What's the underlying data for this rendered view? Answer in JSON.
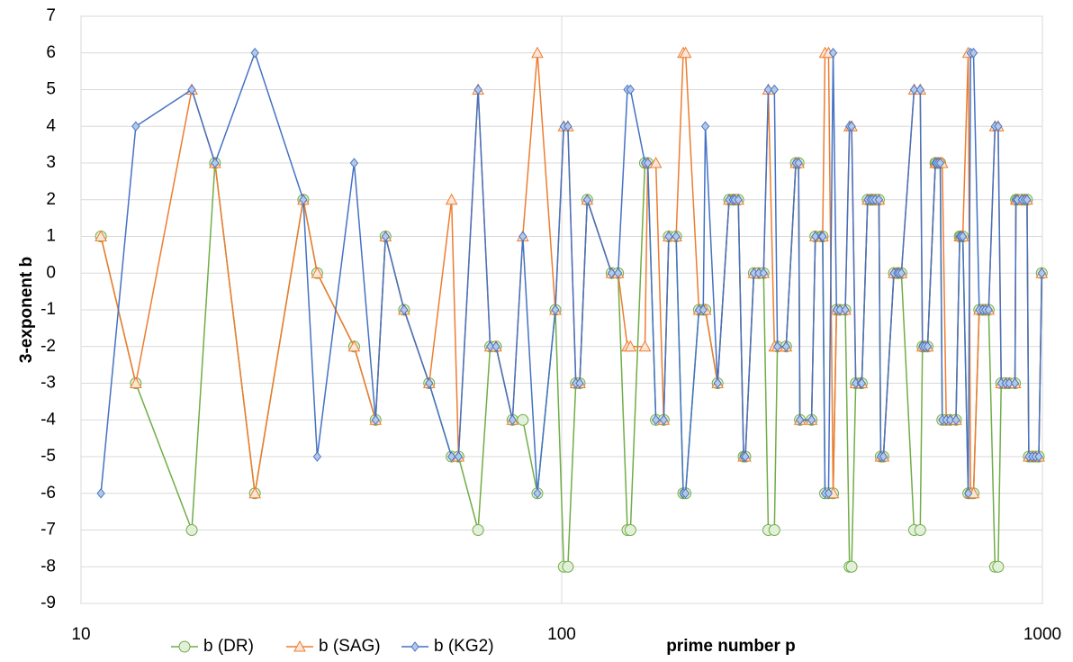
{
  "chart_data": {
    "type": "line",
    "x_label": "prime number p",
    "y_label": "3-exponent b",
    "x": [
      11,
      13,
      17,
      19,
      23,
      29,
      31,
      37,
      41,
      43,
      47,
      53,
      59,
      61,
      67,
      71,
      73,
      79,
      83,
      89,
      97,
      101,
      103,
      107,
      109,
      113,
      127,
      131,
      137,
      139,
      149,
      151,
      157,
      163,
      167,
      173,
      179,
      181,
      193,
      197,
      199,
      211,
      223,
      227,
      229,
      233,
      239,
      241,
      251,
      257,
      263,
      269,
      277,
      281,
      293,
      307,
      311,
      313,
      331,
      337,
      347,
      349,
      353,
      359,
      367,
      373,
      379,
      389,
      397,
      401,
      409,
      419,
      421,
      433,
      439,
      443,
      449,
      457,
      461,
      467,
      491,
      499,
      503,
      509,
      541,
      557,
      563,
      569,
      577,
      599,
      601,
      607,
      613,
      619,
      631,
      643,
      661,
      673,
      677,
      683,
      701,
      709,
      719,
      739,
      751,
      761,
      773,
      797,
      809,
      821,
      839,
      853,
      877,
      881,
      887,
      907,
      919,
      929,
      937,
      953,
      967,
      983,
      997
    ],
    "series": [
      {
        "name": "b (DR)",
        "color": "#70ad47",
        "marker": "circle",
        "values": [
          1,
          -3,
          -7,
          3,
          -6,
          2,
          0,
          -2,
          -4,
          1,
          -1,
          -3,
          -5,
          -5,
          -7,
          -2,
          -2,
          -4,
          -4,
          -6,
          -1,
          -8,
          -8,
          -3,
          -3,
          2,
          0,
          0,
          -7,
          -7,
          3,
          3,
          -4,
          -4,
          1,
          1,
          -6,
          -6,
          -1,
          -1,
          -1,
          -3,
          2,
          2,
          2,
          2,
          -5,
          -5,
          0,
          0,
          0,
          -7,
          -7,
          -2,
          -2,
          3,
          3,
          -4,
          -4,
          1,
          1,
          1,
          -6,
          -6,
          -6,
          -1,
          -1,
          -1,
          -8,
          -8,
          -3,
          -3,
          -3,
          2,
          2,
          2,
          2,
          2,
          -5,
          -5,
          0,
          0,
          0,
          0,
          -7,
          -7,
          -2,
          -2,
          -2,
          3,
          3,
          3,
          3,
          -4,
          -4,
          -4,
          -4,
          1,
          1,
          1,
          -6,
          -6,
          -6,
          -1,
          -1,
          -1,
          -1,
          -8,
          -8,
          -3,
          -3,
          -3,
          -3,
          2,
          2,
          2,
          2,
          2,
          -5,
          -5,
          -5,
          -5,
          0
        ]
      },
      {
        "name": "b (SAG)",
        "color": "#ed7d31",
        "marker": "triangle",
        "values": [
          1,
          -3,
          5,
          3,
          -6,
          2,
          0,
          -2,
          -4,
          1,
          -1,
          -3,
          2,
          -5,
          5,
          -2,
          -2,
          -4,
          1,
          6,
          -1,
          4,
          4,
          -3,
          -3,
          2,
          0,
          0,
          -2,
          -2,
          -2,
          3,
          3,
          -4,
          1,
          1,
          6,
          6,
          -1,
          -1,
          -1,
          -3,
          2,
          2,
          2,
          2,
          -5,
          -5,
          0,
          0,
          0,
          5,
          -2,
          -2,
          -2,
          3,
          3,
          -4,
          -4,
          1,
          1,
          1,
          6,
          6,
          -6,
          -1,
          -1,
          -1,
          4,
          4,
          -3,
          -3,
          -3,
          2,
          2,
          2,
          2,
          2,
          -5,
          -5,
          0,
          0,
          0,
          0,
          5,
          5,
          -2,
          -2,
          -2,
          3,
          3,
          3,
          3,
          3,
          -4,
          -4,
          -4,
          1,
          1,
          1,
          6,
          -6,
          -6,
          -1,
          -1,
          -1,
          -1,
          4,
          4,
          -3,
          -3,
          -3,
          -3,
          2,
          2,
          2,
          2,
          2,
          -5,
          -5,
          -5,
          -5,
          0
        ]
      },
      {
        "name": "b (KG2)",
        "color": "#4472c4",
        "marker": "diamond",
        "values": [
          -6,
          4,
          5,
          3,
          6,
          2,
          -5,
          3,
          -4,
          1,
          -1,
          -3,
          -5,
          -5,
          5,
          -2,
          -2,
          -4,
          1,
          -6,
          -1,
          4,
          4,
          -3,
          -3,
          2,
          0,
          0,
          5,
          5,
          3,
          3,
          -4,
          -4,
          1,
          1,
          -6,
          -6,
          -1,
          -1,
          4,
          -3,
          2,
          2,
          2,
          2,
          -5,
          -5,
          0,
          0,
          0,
          5,
          5,
          -2,
          -2,
          3,
          3,
          -4,
          -4,
          1,
          1,
          1,
          -6,
          -6,
          6,
          -1,
          -1,
          -1,
          4,
          4,
          -3,
          -3,
          -3,
          2,
          2,
          2,
          2,
          2,
          -5,
          -5,
          0,
          0,
          0,
          0,
          5,
          5,
          -2,
          -2,
          -2,
          3,
          3,
          3,
          3,
          -4,
          -4,
          -4,
          -4,
          1,
          1,
          1,
          -6,
          6,
          6,
          -1,
          -1,
          -1,
          -1,
          4,
          4,
          -3,
          -3,
          -3,
          -3,
          2,
          2,
          2,
          2,
          2,
          -5,
          -5,
          -5,
          -5,
          0
        ]
      }
    ],
    "xlim": [
      10,
      1000
    ],
    "xticks": [
      10,
      100,
      1000
    ],
    "xlog": true,
    "ylim": [
      -9,
      7
    ],
    "yticks": [
      -9,
      -8,
      -7,
      -6,
      -5,
      -4,
      -3,
      -2,
      -1,
      0,
      1,
      2,
      3,
      4,
      5,
      6,
      7
    ],
    "grid": true
  }
}
